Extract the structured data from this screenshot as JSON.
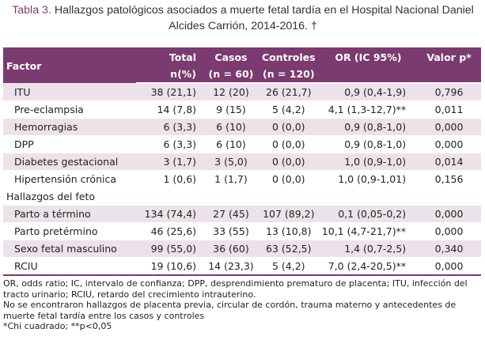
{
  "caption": {
    "label": "Tabla 3.",
    "text": " Hallazgos patológicos asociados a muerte fetal tardía en el Hospital Nacional Daniel Alcides Carrión, 2014-2016. †"
  },
  "header": {
    "factor": "Factor",
    "total": "Total",
    "total_sub": "n(%)",
    "casos": "Casos",
    "casos_sub": "(n = 60)",
    "controles": "Controles",
    "controles_sub": "(n = 120)",
    "or": "OR (IC 95%)",
    "p": "Valor p*"
  },
  "rows": [
    {
      "factor": "ITU",
      "total": "38 (21,1)",
      "casos": "12 (20)",
      "controles": "26 (21,7)",
      "or": "0,9 (0,4-1,9)",
      "p": "0,796"
    },
    {
      "factor": "Pre-eclampsia",
      "total": "14 (7,8)",
      "casos": "9 (15)",
      "controles": "5 (4,2)",
      "or": "4,1 (1,3-12,7)**",
      "p": "0,011"
    },
    {
      "factor": "Hemorragias",
      "total": "6 (3,3)",
      "casos": "6 (10)",
      "controles": "0 (0,0)",
      "or": "0,9 (0,8-1,0)",
      "p": "0,000"
    },
    {
      "factor": "DPP",
      "total": "6 (3,3)",
      "casos": "6 (10)",
      "controles": "0 (0,0)",
      "or": "0,9 (0,8-1,0)",
      "p": "0,000"
    },
    {
      "factor": "Diabetes gestacional",
      "total": "3 (1,7)",
      "casos": "3 (5,0)",
      "controles": "0 (0,0)",
      "or": "1,0 (0,9-1,0)",
      "p": "0,014"
    },
    {
      "factor": "Hipertensión crónica",
      "total": "1 (0,6)",
      "casos": "1 (1,7)",
      "controles": "0 (0,0)",
      "or": "1,0 (0,9-1,01)",
      "p": "0,156"
    }
  ],
  "section2": "Hallazgos del feto",
  "rows2": [
    {
      "factor": "Parto a término",
      "total": "134 (74,4)",
      "casos": "27 (45)",
      "controles": "107 (89,2)",
      "or": "0,1 (0,05-0,2)",
      "p": "0,000"
    },
    {
      "factor": "Parto pretérmino",
      "total": "46 (25,6)",
      "casos": "33 (55)",
      "controles": "13 (10,8)",
      "or": "10,1 (4,7-21,7)**",
      "p": "0,000"
    },
    {
      "factor": "Sexo fetal masculino",
      "total": "99 (55,0)",
      "casos": "36 (60)",
      "controles": "63 (52,5)",
      "or": "1,4 (0,7-2,5)",
      "p": "0,340"
    },
    {
      "factor": "RCIU",
      "total": "19 (10,6)",
      "casos": "14 (23,3)",
      "controles": "5 (4,2)",
      "or": "7,0 (2,4-20,5)**",
      "p": "0,000"
    }
  ],
  "notes": [
    "OR, odds ratio; IC, intervalo de confianza; DPP, desprendimiento prematuro de placenta; ITU, infección del tracto urinario; RCIU, retardo del crecimiento intrauterino.",
    "No se encontraron hallazgos de placenta previa, circular de cordón, trauma materno y antecedentes de muerte fetal tardía entre los casos y controles",
    "*Chi cuadrado; **p<0,05"
  ],
  "colors": {
    "header_bg": "#7b3a70",
    "stripe": "#ece2ea"
  }
}
